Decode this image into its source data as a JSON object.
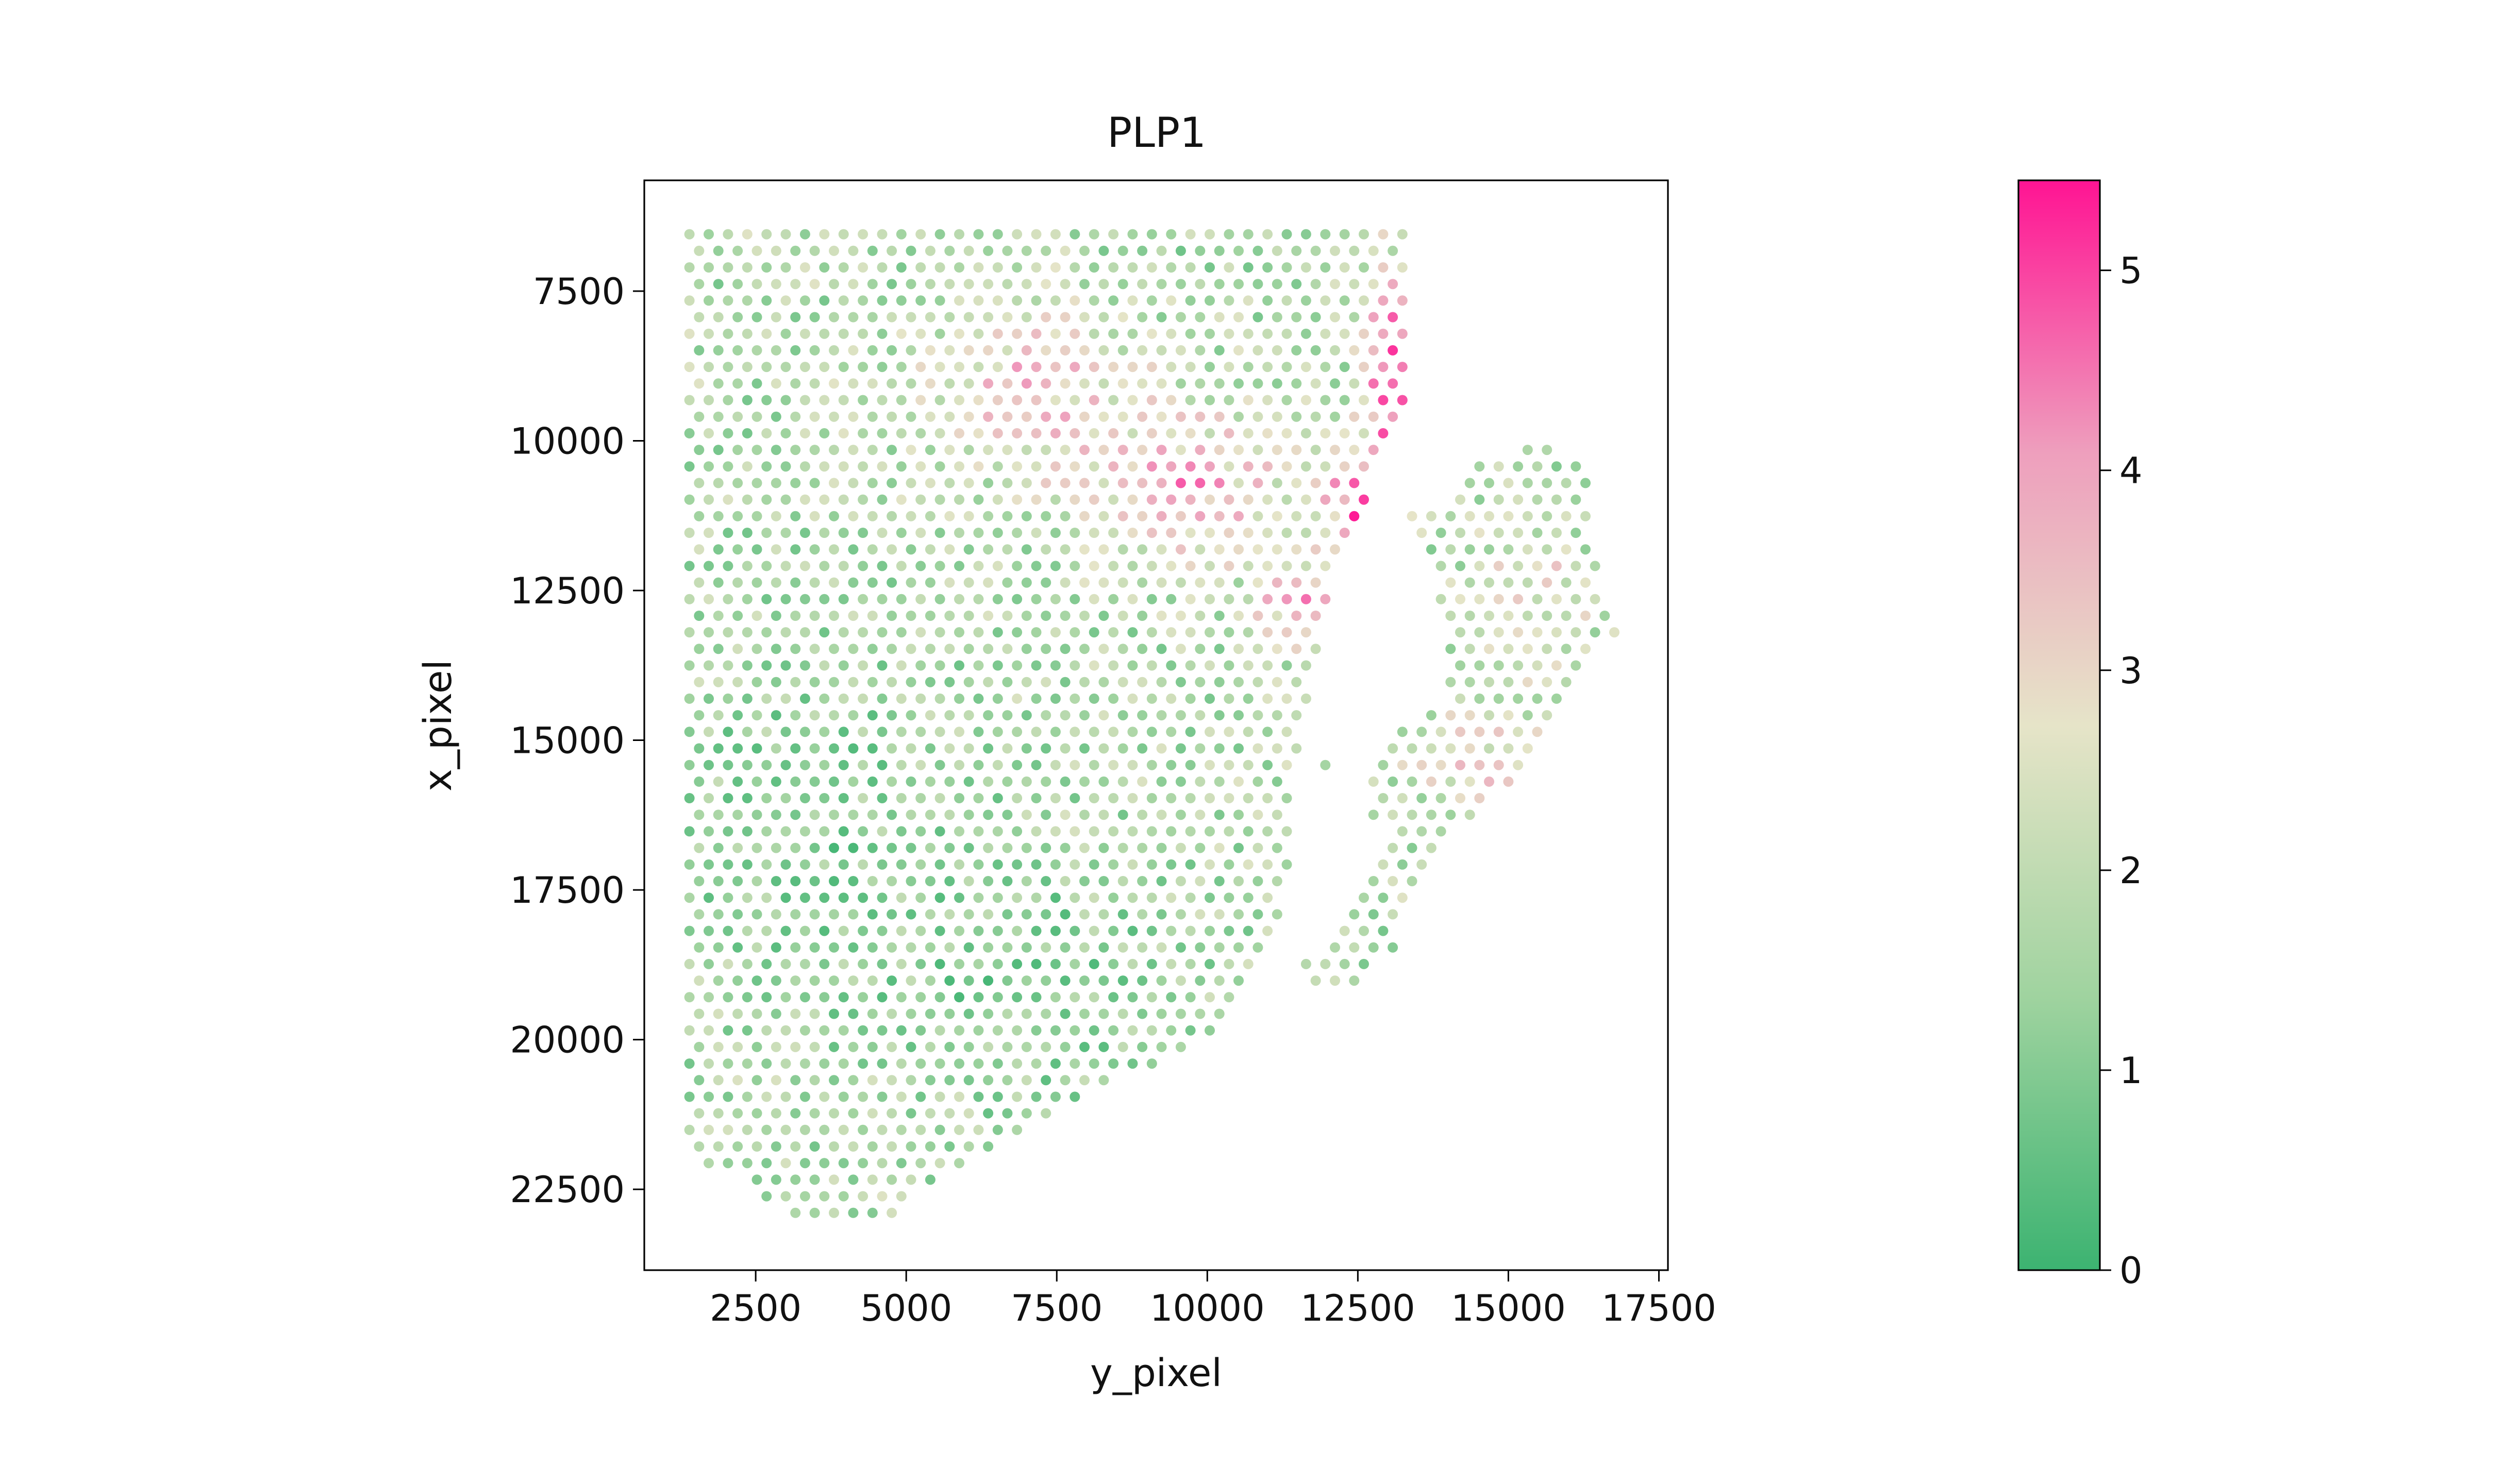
{
  "chart_data": {
    "type": "scatter",
    "title": "PLP1",
    "xlabel": "y_pixel",
    "ylabel": "x_pixel",
    "xlim": [
      650,
      17650
    ],
    "ylim": [
      23850,
      5650
    ],
    "y_inverted": true,
    "x_ticks": [
      "2500",
      "5000",
      "7500",
      "10000",
      "12500",
      "15000",
      "17500"
    ],
    "y_ticks": [
      "7500",
      "10000",
      "12500",
      "15000",
      "17500",
      "20000",
      "22500"
    ],
    "grid": false,
    "legend": "none",
    "spot_grid": {
      "x_start": 1400,
      "x_step": 320,
      "y_start": 6550,
      "y_step": 277
    },
    "tissue_region": {
      "main_polygon": [
        [
          1400,
          6550
        ],
        [
          13250,
          6550
        ],
        [
          13250,
          9400
        ],
        [
          12900,
          10200
        ],
        [
          12500,
          11500
        ],
        [
          12000,
          12600
        ],
        [
          11850,
          13500
        ],
        [
          11400,
          15500
        ],
        [
          11400,
          16800
        ],
        [
          11000,
          18700
        ],
        [
          10500,
          19600
        ],
        [
          7500,
          21300
        ],
        [
          5600,
          22300
        ],
        [
          4650,
          23100
        ],
        [
          2850,
          22900
        ],
        [
          2450,
          22400
        ],
        [
          1700,
          22150
        ],
        [
          1400,
          22000
        ]
      ],
      "lobe_polygon": [
        [
          13800,
          11200
        ],
        [
          14200,
          10700
        ],
        [
          14600,
          10300
        ],
        [
          15800,
          10000
        ],
        [
          16300,
          10500
        ],
        [
          16400,
          11800
        ],
        [
          16800,
          13300
        ],
        [
          16200,
          13800
        ],
        [
          15600,
          15200
        ],
        [
          14200,
          16400
        ],
        [
          13500,
          17300
        ],
        [
          13100,
          18600
        ],
        [
          12000,
          19300
        ],
        [
          11500,
          18700
        ],
        [
          12800,
          17200
        ],
        [
          13100,
          16400
        ],
        [
          11900,
          16000
        ],
        [
          11900,
          15000
        ],
        [
          13500,
          14700
        ],
        [
          14000,
          14200
        ],
        [
          13850,
          12500
        ],
        [
          13300,
          11200
        ]
      ],
      "hole_polygon": [
        [
          13400,
          12000
        ],
        [
          13550,
          13500
        ],
        [
          13200,
          14400
        ],
        [
          12800,
          15300
        ],
        [
          12600,
          16300
        ],
        [
          12200,
          17800
        ],
        [
          11600,
          18800
        ],
        [
          11300,
          18300
        ],
        [
          11800,
          16500
        ],
        [
          12000,
          15200
        ],
        [
          12400,
          13600
        ],
        [
          12900,
          12200
        ]
      ]
    },
    "expression_hotspots": [
      {
        "x": 13100,
        "y": 8900,
        "peak": 5.4,
        "spread_x": 450,
        "spread_y": 1700
      },
      {
        "x": 12500,
        "y": 11000,
        "peak": 4.8,
        "spread_x": 600,
        "spread_y": 1000
      },
      {
        "x": 9600,
        "y": 10800,
        "peak": 3.9,
        "spread_x": 1600,
        "spread_y": 1200
      },
      {
        "x": 7000,
        "y": 9200,
        "peak": 3.5,
        "spread_x": 1800,
        "spread_y": 1300
      },
      {
        "x": 11500,
        "y": 12700,
        "peak": 3.8,
        "spread_x": 700,
        "spread_y": 700
      },
      {
        "x": 14800,
        "y": 15400,
        "peak": 3.0,
        "spread_x": 1300,
        "spread_y": 1100
      },
      {
        "x": 15400,
        "y": 12500,
        "peak": 2.8,
        "spread_x": 1000,
        "spread_y": 1200
      }
    ],
    "low_expression_zones": [
      {
        "x": 10500,
        "y": 7000,
        "depth": 1.5,
        "spread_x": 1600,
        "spread_y": 600
      },
      {
        "x": 3500,
        "y": 16500,
        "depth": 0.9,
        "spread_x": 2500,
        "spread_y": 3000
      },
      {
        "x": 7000,
        "y": 19000,
        "depth": 0.8,
        "spread_x": 2500,
        "spread_y": 2000
      },
      {
        "x": 15600,
        "y": 10800,
        "depth": 1.0,
        "spread_x": 500,
        "spread_y": 500
      }
    ],
    "baseline_expression": 1.7,
    "colorbar": {
      "min": 0,
      "max": 5.45,
      "ticks": [
        "0",
        "1",
        "2",
        "3",
        "4",
        "5"
      ],
      "colors": [
        "#3cb371",
        "#9fd39f",
        "#e6e4c8",
        "#ee9fbd",
        "#ff1493"
      ]
    }
  }
}
